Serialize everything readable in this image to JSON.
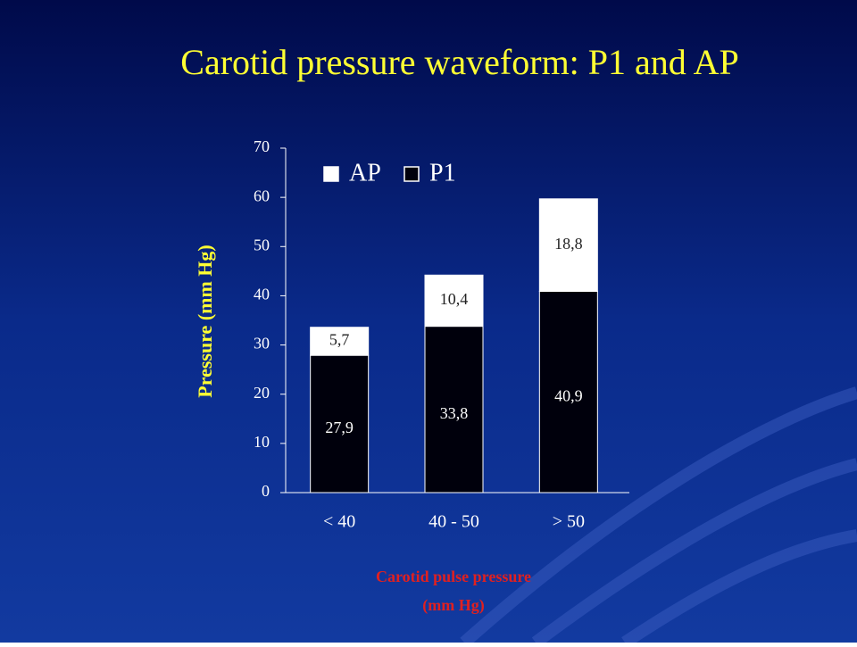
{
  "chart_data": {
    "type": "stacked_bar",
    "title": "Carotid pressure waveform: P1 and AP",
    "y_label": "Pressure (mm Hg)",
    "x_label_lines": [
      "Carotid pulse pressure",
      "(mm Hg)"
    ],
    "categories": [
      "< 40",
      "40 - 50",
      "> 50"
    ],
    "series": [
      {
        "name": "P1",
        "color": "#00000c",
        "values": [
          27.9,
          33.8,
          40.9
        ],
        "value_labels": [
          "27,9",
          "33,8",
          "40,9"
        ]
      },
      {
        "name": "AP",
        "color": "#ffffff",
        "values": [
          5.7,
          10.4,
          18.8
        ],
        "value_labels": [
          "5,7",
          "10,4",
          "18,8"
        ]
      }
    ],
    "legend_order": [
      "AP",
      "P1"
    ],
    "legend": "top-left",
    "ylim": [
      0,
      70
    ],
    "yticks": [
      0,
      10,
      20,
      30,
      40,
      50,
      60,
      70
    ]
  }
}
